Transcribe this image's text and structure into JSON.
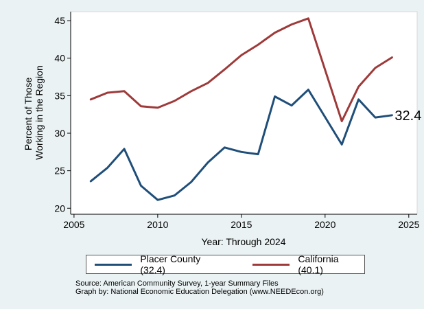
{
  "chart_data": {
    "type": "line",
    "title": "",
    "xlabel": "Year: Through 2024",
    "ylabel_lines": [
      "Percent of Those",
      "Working in the Region"
    ],
    "xlim": [
      2004.8,
      2025.5
    ],
    "ylim": [
      19.2,
      46.2
    ],
    "x_ticks": [
      2005,
      2010,
      2015,
      2020,
      2025
    ],
    "y_ticks": [
      20,
      25,
      30,
      35,
      40,
      45
    ],
    "x": [
      2006,
      2007,
      2008,
      2009,
      2010,
      2011,
      2012,
      2013,
      2014,
      2015,
      2016,
      2017,
      2018,
      2019,
      2021,
      2022,
      2023,
      2024
    ],
    "series": [
      {
        "name": "Placer County (32.4)",
        "color": "#1f4e79",
        "values": [
          23.6,
          25.4,
          27.9,
          23.0,
          21.1,
          21.7,
          23.5,
          26.1,
          28.1,
          27.5,
          27.2,
          34.9,
          33.7,
          35.8,
          28.5,
          34.5,
          32.1,
          32.4
        ]
      },
      {
        "name": "California (40.1)",
        "color": "#9e3a3a",
        "values": [
          34.5,
          35.4,
          35.6,
          33.6,
          33.4,
          34.3,
          35.6,
          36.7,
          38.5,
          40.4,
          41.8,
          43.4,
          44.5,
          45.3,
          31.6,
          36.2,
          38.7,
          40.1
        ]
      }
    ],
    "end_label": "32.4",
    "legend_position": "bottom",
    "grid": false
  },
  "source_line1": "Source: American Community Survey, 1-year Summary Files",
  "source_line2": "Graph by: National Economic Education Delegation (www.NEEDEcon.org)"
}
